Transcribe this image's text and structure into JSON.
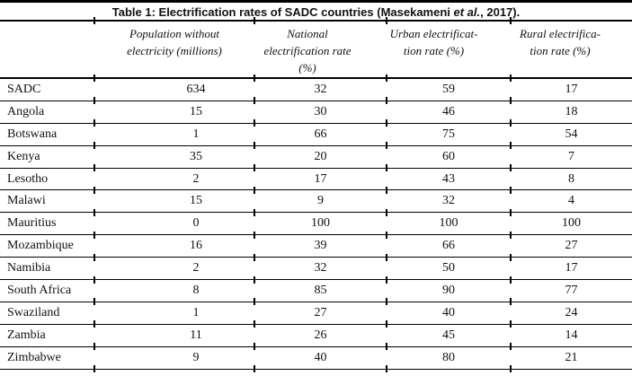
{
  "title": {
    "prefix": "Table 1: Electrification rates of SADC countries (Masekameni ",
    "italic": "et al.",
    "suffix": ", 2017)."
  },
  "table": {
    "columns": [
      {
        "label": ""
      },
      {
        "label": "Population without\nelectricity (millions)"
      },
      {
        "label": "National\nelectrification rate\n(%)"
      },
      {
        "label": "Urban electrificat-\ntion rate (%)"
      },
      {
        "label": "Rural electrifica-\ntion rate (%)"
      }
    ],
    "rows": [
      {
        "country": "SADC",
        "values": [
          "634",
          "32",
          "59",
          "17"
        ]
      },
      {
        "country": "Angola",
        "values": [
          "15",
          "30",
          "46",
          "18"
        ]
      },
      {
        "country": "Botswana",
        "values": [
          "1",
          "66",
          "75",
          "54"
        ]
      },
      {
        "country": "Kenya",
        "values": [
          "35",
          "20",
          "60",
          "7"
        ]
      },
      {
        "country": "Lesotho",
        "values": [
          "2",
          "17",
          "43",
          "8"
        ]
      },
      {
        "country": "Malawi",
        "values": [
          "15",
          "9",
          "32",
          "4"
        ]
      },
      {
        "country": "Mauritius",
        "values": [
          "0",
          "100",
          "100",
          "100"
        ]
      },
      {
        "country": "Mozambique",
        "values": [
          "16",
          "39",
          "66",
          "27"
        ]
      },
      {
        "country": "Namibia",
        "values": [
          "2",
          "32",
          "50",
          "17"
        ]
      },
      {
        "country": "South Africa",
        "values": [
          "8",
          "85",
          "90",
          "77"
        ]
      },
      {
        "country": "Swaziland",
        "values": [
          "1",
          "27",
          "40",
          "24"
        ]
      },
      {
        "country": "Zambia",
        "values": [
          "11",
          "26",
          "45",
          "14"
        ]
      },
      {
        "country": "Zimbabwe",
        "values": [
          "9",
          "40",
          "80",
          "21"
        ]
      }
    ],
    "colors": {
      "rule": "#000000",
      "text": "#111111",
      "background": "#ffffff"
    }
  }
}
